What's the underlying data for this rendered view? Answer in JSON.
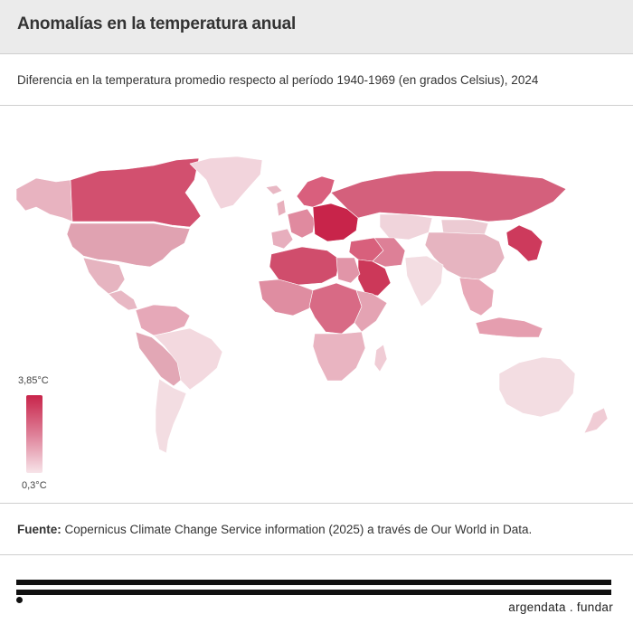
{
  "title": "Anomalías en la temperatura anual",
  "subtitle": "Diferencia en la temperatura promedio respecto al período 1940-1969 (en grados Celsius), 2024",
  "legend": {
    "max_label": "3,85°C",
    "min_label": "0,3°C",
    "max_color": "#c8244a",
    "min_color": "#f7e4e9"
  },
  "source": {
    "label": "Fuente:",
    "text": " Copernicus Climate Change Service information (2025) a través de Our World in Data."
  },
  "brand": "argendata . fundar",
  "map": {
    "colors": {
      "alaska": "#e8b3c0",
      "canada": "#d2506f",
      "greenland": "#f2d4dc",
      "usa": "#e0a2b1",
      "mexico": "#e6b4c0",
      "central_america": "#e8b8c4",
      "venezuela_colombia": "#e6a8b8",
      "brazil": "#f3d9df",
      "peru_bolivia": "#e2a7b5",
      "argentina_chile": "#f3dde2",
      "iceland": "#e8b8c4",
      "uk": "#e8b0bd",
      "scandinavia": "#d95f7d",
      "iberia": "#e7aebd",
      "western_europe": "#e08a9f",
      "eastern_europe": "#c8244a",
      "russia": "#d4607c",
      "kazakhstan": "#f0d4db",
      "mongolia": "#eccbd3",
      "china": "#e6b4c0",
      "korea_japan": "#cd3a5c",
      "middle_east": "#d8607c",
      "arabia": "#cc3859",
      "iran": "#dd8097",
      "india": "#f3dde2",
      "southeast_asia": "#e8a9b8",
      "indonesia": "#e59eaf",
      "north_africa": "#d04d6c",
      "egypt": "#e195a8",
      "west_africa": "#df8da1",
      "central_africa": "#d86a85",
      "east_africa": "#e4a3b3",
      "southern_africa": "#e9b4c1",
      "madagascar": "#f0ccd5",
      "australia": "#f3dde2",
      "new_zealand": "#f0ccd5"
    }
  }
}
